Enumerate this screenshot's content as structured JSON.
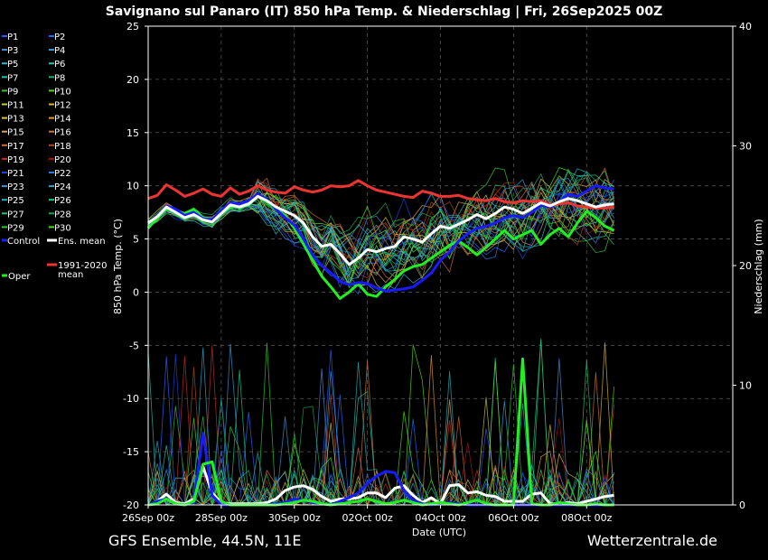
{
  "chart_data": {
    "type": "line",
    "title": "Savignano sul Panaro  (IT)  850 hPa Temp. & Niederschlag | Fri, 26Sep2025 00Z",
    "subtitle_left": "GFS Ensemble, 44.5N, 11E",
    "subtitle_right": "Wetterzentrale.de",
    "xlabel": "Date (UTC)",
    "ylabel_left": "850 hPa Temp. (°C)",
    "ylabel_right": "Niederschlag (mm)",
    "ylim_left": [
      -20,
      25
    ],
    "ylim_right": [
      0,
      40
    ],
    "yticks_left": [
      "25",
      "20",
      "15",
      "10",
      "5",
      "0",
      "-5",
      "-10",
      "-15",
      "-20"
    ],
    "yticks_right": [
      "40",
      "30",
      "20",
      "10",
      "0"
    ],
    "x_ticks": [
      "26Sep 00z",
      "28Sep 00z",
      "30Sep 00z",
      "02Oct 00z",
      "04Oct 00z",
      "06Oct 00z",
      "08Oct 00z"
    ],
    "x_step_hours": 6,
    "x_hours_total": 384,
    "grid": true,
    "legend_placement": "left-outside",
    "legend": [
      {
        "name": "P1",
        "color": "#2d5bff"
      },
      {
        "name": "P2",
        "color": "#1e6bff"
      },
      {
        "name": "P3",
        "color": "#4a8fd8"
      },
      {
        "name": "P4",
        "color": "#3aa0e0"
      },
      {
        "name": "P5",
        "color": "#2fb8c8"
      },
      {
        "name": "P6",
        "color": "#22c4a8"
      },
      {
        "name": "P7",
        "color": "#20c0b0"
      },
      {
        "name": "P8",
        "color": "#1fae6a"
      },
      {
        "name": "P9",
        "color": "#3cc040"
      },
      {
        "name": "P10",
        "color": "#54d81e"
      },
      {
        "name": "P11",
        "color": "#c8c840"
      },
      {
        "name": "P12",
        "color": "#d8b838"
      },
      {
        "name": "P13",
        "color": "#d8c040"
      },
      {
        "name": "P14",
        "color": "#e09a2a"
      },
      {
        "name": "P15",
        "color": "#d8a060"
      },
      {
        "name": "P16",
        "color": "#c8783a"
      },
      {
        "name": "P17",
        "color": "#d06a30"
      },
      {
        "name": "P18",
        "color": "#b04a20"
      },
      {
        "name": "P19",
        "color": "#c03028"
      },
      {
        "name": "P20",
        "color": "#a01818"
      },
      {
        "name": "P21",
        "color": "#2040d8"
      },
      {
        "name": "P22",
        "color": "#2a7ae0"
      },
      {
        "name": "P23",
        "color": "#3a98d0"
      },
      {
        "name": "P24",
        "color": "#2aa8c8"
      },
      {
        "name": "P25",
        "color": "#22b0b8"
      },
      {
        "name": "P26",
        "color": "#1cc890"
      },
      {
        "name": "P27",
        "color": "#28c070"
      },
      {
        "name": "P28",
        "color": "#18a850"
      },
      {
        "name": "P29",
        "color": "#30c830"
      },
      {
        "name": "P30",
        "color": "#48e020"
      },
      {
        "name": "Control",
        "color": "#1a1aff"
      },
      {
        "name": "Ens. mean",
        "color": "#ffffff"
      },
      {
        "name": "1991-2020 mean",
        "color": "#ee3333"
      },
      {
        "name": "Oper",
        "color": "#22ee22"
      }
    ],
    "series": [
      {
        "name": "Ens. mean",
        "color": "#ffffff",
        "axis": "left",
        "x_start": 0,
        "values": [
          6.5,
          7.1,
          8.0,
          7.5,
          7.0,
          7.3,
          6.8,
          6.6,
          7.4,
          8.2,
          8.0,
          8.3,
          9.0,
          8.6,
          8.0,
          7.6,
          7.2,
          6.5,
          5.2,
          4.3,
          4.5,
          3.6,
          2.6,
          3.2,
          4.0,
          3.8,
          4.1,
          4.3,
          5.2,
          5.0,
          4.7,
          5.5,
          6.2,
          6.0,
          6.4,
          6.8,
          7.3,
          6.9,
          7.4,
          8.0,
          7.8,
          7.4,
          7.9,
          8.4,
          8.1,
          8.5,
          8.8,
          8.6,
          8.3,
          8.0,
          8.2,
          8.3
        ]
      },
      {
        "name": "1991-2020 mean",
        "color": "#ee3333",
        "axis": "left",
        "x_start": 0,
        "values": [
          8.8,
          9.1,
          10.1,
          9.6,
          9.0,
          9.3,
          9.7,
          9.2,
          9.0,
          9.8,
          9.2,
          9.5,
          10.0,
          9.6,
          9.4,
          9.3,
          9.9,
          9.6,
          9.4,
          9.6,
          10.0,
          9.9,
          10.0,
          10.5,
          10.0,
          9.6,
          9.4,
          9.2,
          9.0,
          8.9,
          9.5,
          9.3,
          9.0,
          9.0,
          9.1,
          8.8,
          8.7,
          8.6,
          8.8,
          8.5,
          8.4,
          8.6,
          8.5,
          8.6,
          8.2,
          8.3,
          8.4,
          8.1,
          8.0,
          7.9,
          7.9,
          8.0
        ]
      },
      {
        "name": "Control",
        "color": "#1a1aff",
        "axis": "left",
        "x_start": 0,
        "values": [
          6.5,
          7.2,
          8.1,
          7.8,
          7.2,
          7.5,
          6.9,
          6.8,
          7.7,
          8.4,
          8.3,
          8.6,
          9.2,
          8.7,
          7.8,
          7.0,
          6.3,
          5.0,
          3.5,
          2.5,
          1.8,
          1.0,
          0.7,
          0.9,
          0.8,
          0.4,
          0.1,
          0.2,
          0.3,
          0.5,
          1.1,
          1.8,
          3.0,
          3.8,
          4.8,
          5.5,
          6.0,
          6.2,
          6.5,
          7.0,
          7.2,
          7.0,
          7.5,
          8.2,
          8.0,
          8.5,
          9.2,
          9.0,
          9.5,
          10.0,
          9.8,
          9.7
        ]
      },
      {
        "name": "Oper",
        "color": "#22ee22",
        "axis": "left",
        "x_start": 0,
        "values": [
          6.0,
          7.0,
          7.8,
          7.6,
          7.4,
          7.8,
          7.0,
          6.8,
          7.4,
          8.0,
          8.0,
          8.2,
          9.0,
          8.5,
          7.8,
          7.2,
          6.0,
          4.5,
          3.0,
          1.5,
          0.5,
          -0.6,
          0.0,
          0.8,
          -0.2,
          -0.4,
          0.5,
          1.2,
          2.0,
          2.4,
          2.6,
          3.2,
          3.8,
          4.4,
          4.8,
          4.2,
          3.5,
          4.2,
          5.0,
          5.8,
          5.0,
          5.4,
          5.8,
          4.5,
          5.4,
          6.0,
          5.2,
          6.5,
          7.6,
          7.0,
          6.2,
          5.8
        ]
      },
      {
        "name": "Ens. mean precip",
        "color": "#ffffff",
        "axis": "right",
        "x_start": 0,
        "values": [
          0,
          0.3,
          0.9,
          0.2,
          0.1,
          0.5,
          3.2,
          1.0,
          0.2,
          0.1,
          0.1,
          0.1,
          0.1,
          0.2,
          0.5,
          1.2,
          1.5,
          1.6,
          1.3,
          0.7,
          0.3,
          0.5,
          0.5,
          0.6,
          1.0,
          1.0,
          0.6,
          1.4,
          1.6,
          0.8,
          0.2,
          0.6,
          0.1,
          1.6,
          1.7,
          1.0,
          1.1,
          0.8,
          0.7,
          0.3,
          0.3,
          0.3,
          0.9,
          1.0,
          0.1,
          0.1,
          0.2,
          0.1,
          0.3,
          0.5,
          0.7,
          0.8
        ]
      },
      {
        "name": "Control precip",
        "color": "#1a1aff",
        "axis": "right",
        "x_start": 0,
        "values": [
          0,
          0.3,
          0.5,
          0.1,
          0,
          0.2,
          6.0,
          0.8,
          0,
          0,
          0,
          0,
          0,
          0,
          0.1,
          0.2,
          0.5,
          0.4,
          0.2,
          0.1,
          0,
          0.3,
          0.6,
          1.0,
          1.8,
          2.4,
          2.8,
          2.7,
          1.2,
          0.4,
          0.1,
          0,
          0.1,
          0.2,
          0.1,
          0,
          0,
          0,
          0,
          0,
          0,
          0,
          0,
          0,
          0,
          0,
          0,
          0,
          0,
          0,
          0,
          0
        ]
      },
      {
        "name": "Oper precip",
        "color": "#22ee22",
        "axis": "right",
        "x_start": 0,
        "values": [
          0,
          0.1,
          0.5,
          0.1,
          0,
          0.3,
          3.4,
          3.6,
          0.3,
          0,
          0,
          0,
          0,
          0,
          0,
          0.1,
          0.2,
          0.4,
          0.3,
          0.1,
          0,
          0.1,
          0.2,
          0.3,
          0.5,
          0.3,
          0.1,
          0.2,
          0.4,
          0.2,
          0,
          0.1,
          0.2,
          0.1,
          0,
          0.2,
          0.4,
          0.1,
          0,
          0,
          0,
          12.2,
          0.1,
          0,
          0,
          0.2,
          0.1,
          0,
          0,
          0.1,
          0,
          0
        ]
      }
    ]
  }
}
